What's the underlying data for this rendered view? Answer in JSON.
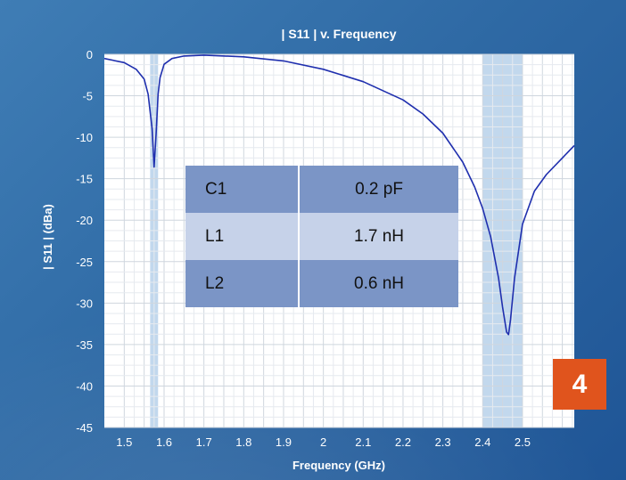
{
  "chart_data": {
    "type": "line",
    "title": "| S11 | v. Frequency",
    "xlabel": "Frequency (GHz)",
    "ylabel": "| S11 |  (dBa)",
    "xlim": [
      1.45,
      2.63
    ],
    "ylim": [
      -45,
      0
    ],
    "xticks": [
      "1.5",
      "1.6",
      "1.7",
      "1.8",
      "1.9",
      "2",
      "2.1",
      "2.2",
      "2.3",
      "2.4",
      "2.5"
    ],
    "yticks": [
      "0",
      "-5",
      "-10",
      "-15",
      "-20",
      "-25",
      "-30",
      "-35",
      "-40",
      "-45"
    ],
    "grid": true,
    "highlight_bands": [
      {
        "x_start": 1.565,
        "x_end": 1.585
      },
      {
        "x_start": 2.4,
        "x_end": 2.5
      }
    ],
    "series": [
      {
        "x": [
          1.45,
          1.5,
          1.53,
          1.55,
          1.56,
          1.57,
          1.575,
          1.58,
          1.585,
          1.59,
          1.6,
          1.62,
          1.65,
          1.7,
          1.8,
          1.9,
          2.0,
          2.1,
          2.2,
          2.25,
          2.3,
          2.35,
          2.38,
          2.4,
          2.42,
          2.44,
          2.45,
          2.46,
          2.465,
          2.47,
          2.48,
          2.5,
          2.53,
          2.56,
          2.6,
          2.63
        ],
        "y": [
          -0.5,
          -1.0,
          -1.8,
          -3.0,
          -4.8,
          -9.0,
          -13.6,
          -9.5,
          -4.8,
          -2.8,
          -1.2,
          -0.5,
          -0.2,
          -0.1,
          -0.3,
          -0.8,
          -1.8,
          -3.3,
          -5.5,
          -7.2,
          -9.5,
          -13.0,
          -16.0,
          -18.6,
          -22.0,
          -27.0,
          -30.5,
          -33.5,
          -33.8,
          -32.0,
          -27.0,
          -20.5,
          -16.5,
          -14.5,
          -12.5,
          -11.0
        ]
      }
    ],
    "line_color": "#1f2fae",
    "band_color": "#b7d1ea"
  },
  "table": {
    "rows": [
      {
        "name": "C1",
        "value": "0.2 pF"
      },
      {
        "name": "L1",
        "value": "1.7 nH"
      },
      {
        "name": "L2",
        "value": "0.6 nH"
      }
    ]
  },
  "badge": "4"
}
